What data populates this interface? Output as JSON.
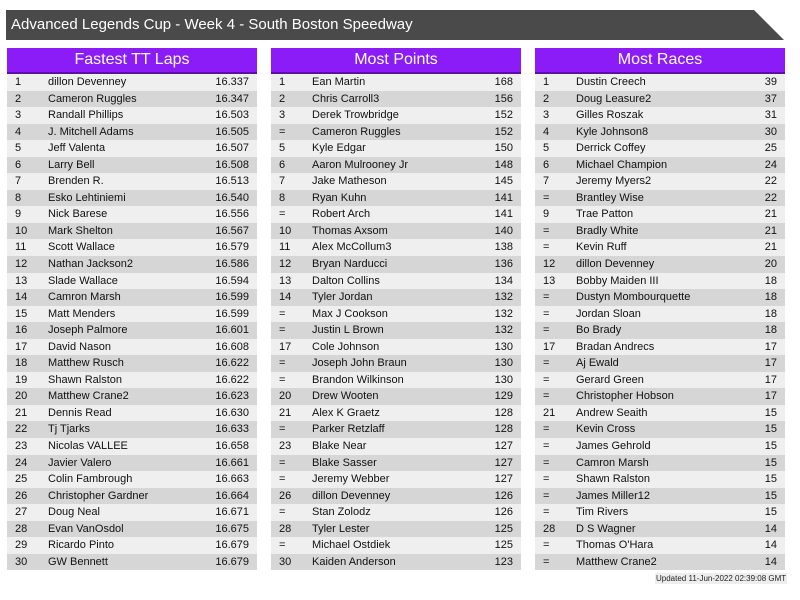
{
  "title": "Advanced Legends Cup - Week 4 - South Boston Speedway",
  "colors": {
    "header": "#8c1cf7",
    "titlebar": "#4a4a4a",
    "row_light": "#efefef",
    "row_dark": "#d6d6d6"
  },
  "tables": [
    {
      "title": "Fastest TT Laps",
      "rows": [
        {
          "rank": "1",
          "name": "dillon Devenney",
          "value": "16.337"
        },
        {
          "rank": "2",
          "name": "Cameron Ruggles",
          "value": "16.347"
        },
        {
          "rank": "3",
          "name": "Randall Phillips",
          "value": "16.503"
        },
        {
          "rank": "4",
          "name": "J. Mitchell Adams",
          "value": "16.505"
        },
        {
          "rank": "5",
          "name": "Jeff Valenta",
          "value": "16.507"
        },
        {
          "rank": "6",
          "name": "Larry Bell",
          "value": "16.508"
        },
        {
          "rank": "7",
          "name": "Brenden R.",
          "value": "16.513"
        },
        {
          "rank": "8",
          "name": "Esko Lehtiniemi",
          "value": "16.540"
        },
        {
          "rank": "9",
          "name": "Nick Barese",
          "value": "16.556"
        },
        {
          "rank": "10",
          "name": "Mark Shelton",
          "value": "16.567"
        },
        {
          "rank": "11",
          "name": "Scott Wallace",
          "value": "16.579"
        },
        {
          "rank": "12",
          "name": "Nathan Jackson2",
          "value": "16.586"
        },
        {
          "rank": "13",
          "name": "Slade Wallace",
          "value": "16.594"
        },
        {
          "rank": "14",
          "name": "Camron Marsh",
          "value": "16.599"
        },
        {
          "rank": "15",
          "name": "Matt Menders",
          "value": "16.599"
        },
        {
          "rank": "16",
          "name": "Joseph Palmore",
          "value": "16.601"
        },
        {
          "rank": "17",
          "name": "David Nason",
          "value": "16.608"
        },
        {
          "rank": "18",
          "name": "Matthew Rusch",
          "value": "16.622"
        },
        {
          "rank": "19",
          "name": "Shawn Ralston",
          "value": "16.622"
        },
        {
          "rank": "20",
          "name": "Matthew Crane2",
          "value": "16.623"
        },
        {
          "rank": "21",
          "name": "Dennis Read",
          "value": "16.630"
        },
        {
          "rank": "22",
          "name": "Tj Tjarks",
          "value": "16.633"
        },
        {
          "rank": "23",
          "name": "Nicolas VALLEE",
          "value": "16.658"
        },
        {
          "rank": "24",
          "name": "Javier Valero",
          "value": "16.661"
        },
        {
          "rank": "25",
          "name": "Colin Fambrough",
          "value": "16.663"
        },
        {
          "rank": "26",
          "name": "Christopher Gardner",
          "value": "16.664"
        },
        {
          "rank": "27",
          "name": "Doug Neal",
          "value": "16.671"
        },
        {
          "rank": "28",
          "name": "Evan VanOsdol",
          "value": "16.675"
        },
        {
          "rank": "29",
          "name": "Ricardo Pinto",
          "value": "16.679"
        },
        {
          "rank": "30",
          "name": "GW Bennett",
          "value": "16.679"
        }
      ]
    },
    {
      "title": "Most Points",
      "rows": [
        {
          "rank": "1",
          "name": "Ean Martin",
          "value": "168"
        },
        {
          "rank": "2",
          "name": "Chris Carroll3",
          "value": "156"
        },
        {
          "rank": "3",
          "name": "Derek Trowbridge",
          "value": "152"
        },
        {
          "rank": "=",
          "name": "Cameron Ruggles",
          "value": "152"
        },
        {
          "rank": "5",
          "name": "Kyle Edgar",
          "value": "150"
        },
        {
          "rank": "6",
          "name": "Aaron Mulrooney Jr",
          "value": "148"
        },
        {
          "rank": "7",
          "name": "Jake Matheson",
          "value": "145"
        },
        {
          "rank": "8",
          "name": "Ryan Kuhn",
          "value": "141"
        },
        {
          "rank": "=",
          "name": "Robert Arch",
          "value": "141"
        },
        {
          "rank": "10",
          "name": "Thomas Axsom",
          "value": "140"
        },
        {
          "rank": "11",
          "name": "Alex McCollum3",
          "value": "138"
        },
        {
          "rank": "12",
          "name": "Bryan Narducci",
          "value": "136"
        },
        {
          "rank": "13",
          "name": "Dalton Collins",
          "value": "134"
        },
        {
          "rank": "14",
          "name": "Tyler Jordan",
          "value": "132"
        },
        {
          "rank": "=",
          "name": "Max J Cookson",
          "value": "132"
        },
        {
          "rank": "=",
          "name": "Justin L Brown",
          "value": "132"
        },
        {
          "rank": "17",
          "name": "Cole Johnson",
          "value": "130"
        },
        {
          "rank": "=",
          "name": "Joseph John Braun",
          "value": "130"
        },
        {
          "rank": "=",
          "name": "Brandon Wilkinson",
          "value": "130"
        },
        {
          "rank": "20",
          "name": "Drew Wooten",
          "value": "129"
        },
        {
          "rank": "21",
          "name": "Alex K Graetz",
          "value": "128"
        },
        {
          "rank": "=",
          "name": "Parker Retzlaff",
          "value": "128"
        },
        {
          "rank": "23",
          "name": "Blake Near",
          "value": "127"
        },
        {
          "rank": "=",
          "name": "Blake Sasser",
          "value": "127"
        },
        {
          "rank": "=",
          "name": "Jeremy Webber",
          "value": "127"
        },
        {
          "rank": "26",
          "name": "dillon Devenney",
          "value": "126"
        },
        {
          "rank": "=",
          "name": "Stan Zolodz",
          "value": "126"
        },
        {
          "rank": "28",
          "name": "Tyler Lester",
          "value": "125"
        },
        {
          "rank": "=",
          "name": "Michael Ostdiek",
          "value": "125"
        },
        {
          "rank": "30",
          "name": "Kaiden Anderson",
          "value": "123"
        }
      ]
    },
    {
      "title": "Most Races",
      "rows": [
        {
          "rank": "1",
          "name": "Dustin Creech",
          "value": "39"
        },
        {
          "rank": "2",
          "name": "Doug Leasure2",
          "value": "37"
        },
        {
          "rank": "3",
          "name": "Gilles Roszak",
          "value": "31"
        },
        {
          "rank": "4",
          "name": "Kyle Johnson8",
          "value": "30"
        },
        {
          "rank": "5",
          "name": "Derrick Coffey",
          "value": "25"
        },
        {
          "rank": "6",
          "name": "Michael Champion",
          "value": "24"
        },
        {
          "rank": "7",
          "name": "Jeremy Myers2",
          "value": "22"
        },
        {
          "rank": "=",
          "name": "Brantley Wise",
          "value": "22"
        },
        {
          "rank": "9",
          "name": "Trae Patton",
          "value": "21"
        },
        {
          "rank": "=",
          "name": "Bradly White",
          "value": "21"
        },
        {
          "rank": "=",
          "name": "Kevin Ruff",
          "value": "21"
        },
        {
          "rank": "12",
          "name": "dillon Devenney",
          "value": "20"
        },
        {
          "rank": "13",
          "name": "Bobby Maiden III",
          "value": "18"
        },
        {
          "rank": "=",
          "name": "Dustyn Mombourquette",
          "value": "18"
        },
        {
          "rank": "=",
          "name": "Jordan Sloan",
          "value": "18"
        },
        {
          "rank": "=",
          "name": "Bo Brady",
          "value": "18"
        },
        {
          "rank": "17",
          "name": "Bradan Andrecs",
          "value": "17"
        },
        {
          "rank": "=",
          "name": "Aj Ewald",
          "value": "17"
        },
        {
          "rank": "=",
          "name": "Gerard Green",
          "value": "17"
        },
        {
          "rank": "=",
          "name": "Christopher Hobson",
          "value": "17"
        },
        {
          "rank": "21",
          "name": "Andrew Seaith",
          "value": "15"
        },
        {
          "rank": "=",
          "name": "Kevin Cross",
          "value": "15"
        },
        {
          "rank": "=",
          "name": "James Gehrold",
          "value": "15"
        },
        {
          "rank": "=",
          "name": "Camron Marsh",
          "value": "15"
        },
        {
          "rank": "=",
          "name": "Shawn Ralston",
          "value": "15"
        },
        {
          "rank": "=",
          "name": "James Miller12",
          "value": "15"
        },
        {
          "rank": "=",
          "name": "Tim Rivers",
          "value": "15"
        },
        {
          "rank": "28",
          "name": "D S Wagner",
          "value": "14"
        },
        {
          "rank": "=",
          "name": "Thomas O'Hara",
          "value": "14"
        },
        {
          "rank": "=",
          "name": "Matthew Crane2",
          "value": "14"
        }
      ]
    }
  ],
  "footer": "Updated 11-Jun-2022 02:39:08 GMT"
}
